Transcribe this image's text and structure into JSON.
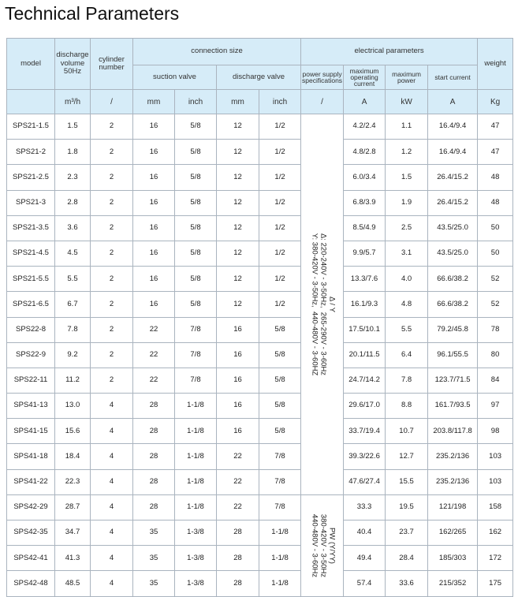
{
  "title": "Technical Parameters",
  "header": {
    "model": "model",
    "discharge_volume": "discharge volume 50Hz",
    "cylinder_number": "cylinder number",
    "connection_size": "connection size",
    "suction_valve": "suction valve",
    "discharge_valve": "discharge valve",
    "electrical_parameters": "electrical parameters",
    "power_supply": "power supply specifications",
    "max_operating_current": "maximum operating current",
    "max_power": "maximum power",
    "start_current": "start current",
    "weight": "weight",
    "units": [
      "m³/h",
      "/",
      "mm",
      "inch",
      "mm",
      "inch",
      "/",
      "A",
      "kW",
      "A",
      "Kg"
    ]
  },
  "power_groups": [
    {
      "lines": [
        "Δ / Y",
        "Δ: 220-240V - 3-50Hz,  265-290V - 3-60Hz",
        "Y: 380-420V - 3-50Hz,  440-480V - 3-60HZ"
      ]
    },
    {
      "lines": [
        "PW (Y/YY)",
        "380-420V - 3-50Hz",
        "440-480V - 3-60Hz"
      ]
    }
  ],
  "rows": [
    [
      "SPS21-1.5",
      "1.5",
      "2",
      "16",
      "5/8",
      "12",
      "1/2",
      "4.2/2.4",
      "1.1",
      "16.4/9.4",
      "47"
    ],
    [
      "SPS21-2",
      "1.8",
      "2",
      "16",
      "5/8",
      "12",
      "1/2",
      "4.8/2.8",
      "1.2",
      "16.4/9.4",
      "47"
    ],
    [
      "SPS21-2.5",
      "2.3",
      "2",
      "16",
      "5/8",
      "12",
      "1/2",
      "6.0/3.4",
      "1.5",
      "26.4/15.2",
      "48"
    ],
    [
      "SPS21-3",
      "2.8",
      "2",
      "16",
      "5/8",
      "12",
      "1/2",
      "6.8/3.9",
      "1.9",
      "26.4/15.2",
      "48"
    ],
    [
      "SPS21-3.5",
      "3.6",
      "2",
      "16",
      "5/8",
      "12",
      "1/2",
      "8.5/4.9",
      "2.5",
      "43.5/25.0",
      "50"
    ],
    [
      "SPS21-4.5",
      "4.5",
      "2",
      "16",
      "5/8",
      "12",
      "1/2",
      "9.9/5.7",
      "3.1",
      "43.5/25.0",
      "50"
    ],
    [
      "SPS21-5.5",
      "5.5",
      "2",
      "16",
      "5/8",
      "12",
      "1/2",
      "13.3/7.6",
      "4.0",
      "66.6/38.2",
      "52"
    ],
    [
      "SPS21-6.5",
      "6.7",
      "2",
      "16",
      "5/8",
      "12",
      "1/2",
      "16.1/9.3",
      "4.8",
      "66.6/38.2",
      "52"
    ],
    [
      "SPS22-8",
      "7.8",
      "2",
      "22",
      "7/8",
      "16",
      "5/8",
      "17.5/10.1",
      "5.5",
      "79.2/45.8",
      "78"
    ],
    [
      "SPS22-9",
      "9.2",
      "2",
      "22",
      "7/8",
      "16",
      "5/8",
      "20.1/11.5",
      "6.4",
      "96.1/55.5",
      "80"
    ],
    [
      "SPS22-11",
      "11.2",
      "2",
      "22",
      "7/8",
      "16",
      "5/8",
      "24.7/14.2",
      "7.8",
      "123.7/71.5",
      "84"
    ],
    [
      "SPS41-13",
      "13.0",
      "4",
      "28",
      "1-1/8",
      "16",
      "5/8",
      "29.6/17.0",
      "8.8",
      "161.7/93.5",
      "97"
    ],
    [
      "SPS41-15",
      "15.6",
      "4",
      "28",
      "1-1/8",
      "16",
      "5/8",
      "33.7/19.4",
      "10.7",
      "203.8/117.8",
      "98"
    ],
    [
      "SPS41-18",
      "18.4",
      "4",
      "28",
      "1-1/8",
      "22",
      "7/8",
      "39.3/22.6",
      "12.7",
      "235.2/136",
      "103"
    ],
    [
      "SPS41-22",
      "22.3",
      "4",
      "28",
      "1-1/8",
      "22",
      "7/8",
      "47.6/27.4",
      "15.5",
      "235.2/136",
      "103"
    ],
    [
      "SPS42-29",
      "28.7",
      "4",
      "28",
      "1-1/8",
      "22",
      "7/8",
      "33.3",
      "19.5",
      "121/198",
      "158"
    ],
    [
      "SPS42-35",
      "34.7",
      "4",
      "35",
      "1-3/8",
      "28",
      "1-1/8",
      "40.4",
      "23.7",
      "162/265",
      "162"
    ],
    [
      "SPS42-41",
      "41.3",
      "4",
      "35",
      "1-3/8",
      "28",
      "1-1/8",
      "49.4",
      "28.4",
      "185/303",
      "172"
    ],
    [
      "SPS42-48",
      "48.5",
      "4",
      "35",
      "1-3/8",
      "28",
      "1-1/8",
      "57.4",
      "33.6",
      "215/352",
      "175"
    ]
  ]
}
